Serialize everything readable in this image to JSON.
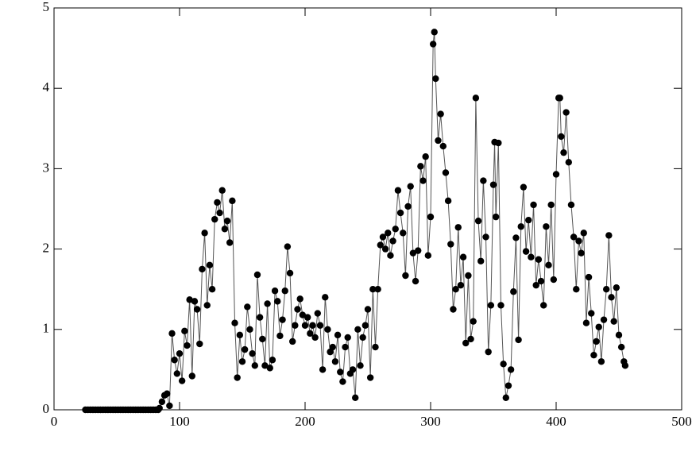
{
  "chart_data": {
    "type": "line",
    "markers": true,
    "color": "#000000",
    "line_color": "#555555",
    "x": [
      25,
      27,
      29,
      31,
      33,
      35,
      37,
      39,
      41,
      43,
      45,
      47,
      49,
      51,
      53,
      55,
      57,
      59,
      61,
      63,
      65,
      67,
      69,
      71,
      73,
      75,
      77,
      79,
      81,
      83,
      84,
      86,
      88,
      90,
      92,
      94,
      96,
      98,
      100,
      102,
      104,
      106,
      108,
      110,
      112,
      114,
      116,
      118,
      120,
      122,
      124,
      126,
      128,
      130,
      132,
      134,
      136,
      138,
      140,
      142,
      144,
      146,
      148,
      150,
      152,
      154,
      156,
      158,
      160,
      162,
      164,
      166,
      168,
      170,
      172,
      174,
      176,
      178,
      180,
      182,
      184,
      186,
      188,
      190,
      192,
      194,
      196,
      198,
      200,
      202,
      204,
      206,
      208,
      210,
      212,
      214,
      216,
      218,
      220,
      222,
      224,
      226,
      228,
      230,
      232,
      234,
      236,
      238,
      240,
      242,
      244,
      246,
      248,
      250,
      252,
      254,
      256,
      258,
      260,
      262,
      264,
      266,
      268,
      270,
      272,
      274,
      276,
      278,
      280,
      282,
      284,
      286,
      288,
      290,
      292,
      294,
      296,
      298,
      300,
      302,
      303,
      304,
      306,
      308,
      310,
      312,
      314,
      316,
      318,
      320,
      322,
      324,
      326,
      328,
      330,
      332,
      334,
      336,
      338,
      340,
      342,
      344,
      346,
      348,
      350,
      351,
      352,
      354,
      356,
      358,
      360,
      362,
      364,
      366,
      368,
      370,
      372,
      374,
      376,
      378,
      380,
      382,
      384,
      386,
      388,
      390,
      392,
      394,
      396,
      398,
      400,
      402,
      403,
      404,
      406,
      408,
      410,
      412,
      414,
      416,
      418,
      420,
      422,
      424,
      426,
      428,
      430,
      432,
      434,
      436,
      438,
      440,
      442,
      444,
      446,
      448,
      450,
      452,
      454,
      455
    ],
    "values": [
      0,
      0,
      0,
      0,
      0,
      0,
      0,
      0,
      0,
      0,
      0,
      0,
      0,
      0,
      0,
      0,
      0,
      0,
      0,
      0,
      0,
      0,
      0,
      0,
      0,
      0,
      0,
      0,
      0,
      0,
      0.02,
      0.1,
      0.18,
      0.2,
      0.05,
      0.95,
      0.62,
      0.45,
      0.7,
      0.36,
      0.98,
      0.8,
      1.37,
      0.42,
      1.35,
      1.25,
      0.82,
      1.75,
      2.2,
      1.3,
      1.8,
      1.5,
      2.37,
      2.58,
      2.45,
      2.73,
      2.25,
      2.35,
      2.08,
      2.6,
      1.08,
      0.4,
      0.93,
      0.6,
      0.75,
      1.28,
      1.0,
      0.7,
      0.55,
      1.68,
      1.15,
      0.88,
      0.55,
      1.32,
      0.52,
      0.62,
      1.48,
      1.35,
      0.92,
      1.12,
      1.48,
      2.03,
      1.7,
      0.85,
      1.05,
      1.25,
      1.38,
      1.18,
      1.05,
      1.15,
      0.95,
      1.05,
      0.9,
      1.2,
      1.05,
      0.5,
      1.4,
      1.0,
      0.72,
      0.78,
      0.6,
      0.93,
      0.47,
      0.35,
      0.78,
      0.9,
      0.45,
      0.5,
      0.15,
      1.0,
      0.55,
      0.9,
      1.05,
      1.25,
      0.4,
      1.5,
      0.78,
      1.5,
      2.05,
      2.15,
      2.0,
      2.2,
      1.92,
      2.1,
      2.25,
      2.73,
      2.45,
      2.2,
      1.67,
      2.53,
      2.78,
      1.95,
      1.6,
      1.98,
      3.03,
      2.85,
      3.15,
      1.92,
      2.4,
      4.55,
      4.7,
      4.12,
      3.35,
      3.68,
      3.28,
      2.95,
      2.6,
      2.06,
      1.25,
      1.5,
      2.27,
      1.55,
      1.9,
      0.83,
      1.67,
      0.88,
      1.1,
      3.88,
      2.35,
      1.85,
      2.85,
      2.15,
      0.72,
      1.3,
      2.8,
      3.33,
      2.4,
      3.32,
      1.3,
      0.57,
      0.15,
      0.3,
      0.5,
      1.47,
      2.14,
      0.87,
      2.28,
      2.77,
      1.97,
      2.36,
      1.9,
      2.55,
      1.55,
      1.87,
      1.6,
      1.3,
      2.28,
      1.8,
      2.55,
      1.62,
      2.93,
      3.88,
      3.88,
      3.4,
      3.2,
      3.7,
      3.08,
      2.55,
      2.15,
      1.5,
      2.1,
      1.95,
      2.2,
      1.08,
      1.65,
      1.2,
      0.68,
      0.85,
      1.03,
      0.6,
      1.12,
      1.5,
      2.17,
      1.4,
      1.1,
      1.52,
      0.93,
      0.78,
      0.6,
      0.55
    ],
    "xlim": [
      0,
      500
    ],
    "xticks": [
      0,
      100,
      200,
      300,
      400,
      500
    ],
    "ylim": [
      0,
      5
    ],
    "yticks": [
      0,
      1,
      2,
      3,
      4,
      5
    ]
  }
}
